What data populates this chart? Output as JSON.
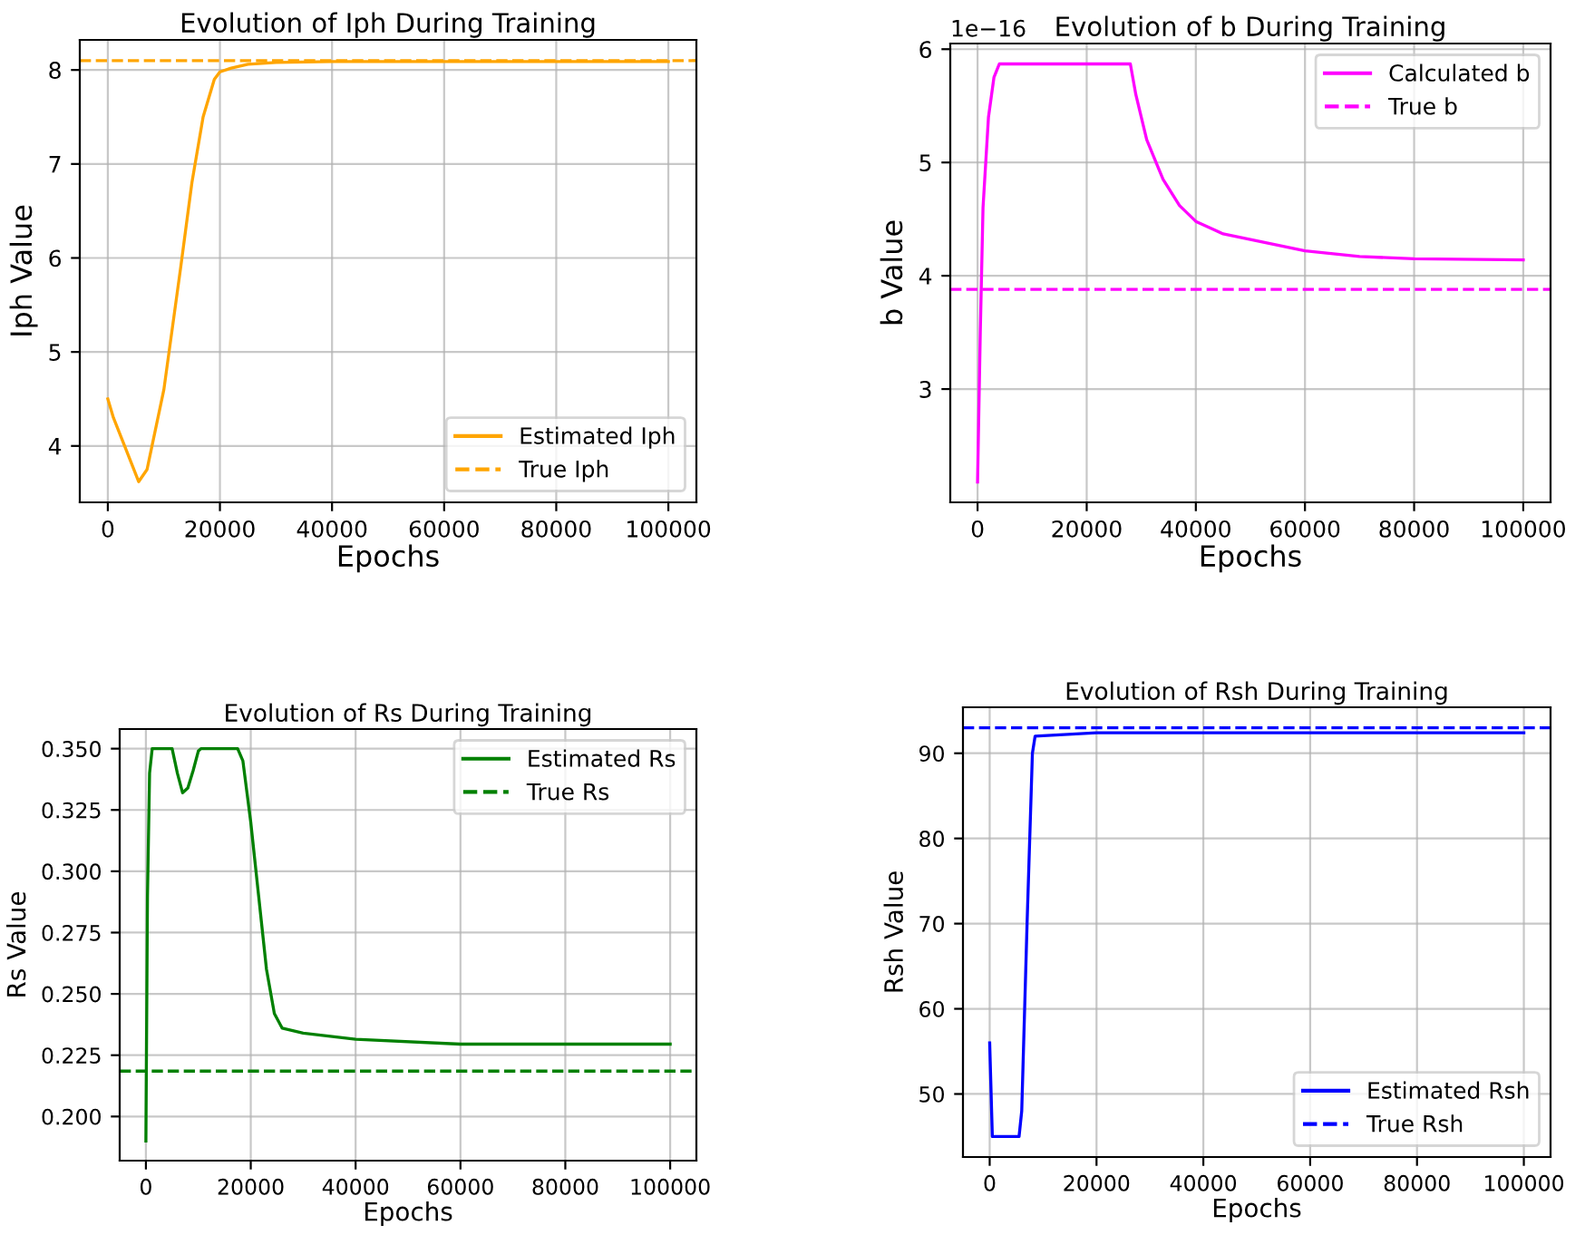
{
  "chart_data": [
    {
      "type": "line",
      "title": "Evolution of Iph During Training",
      "xlabel": "Epochs",
      "ylabel": "Iph Value",
      "grid": true,
      "legend": "lower right",
      "xlim": [
        -5000,
        105000
      ],
      "xticks": [
        0,
        20000,
        40000,
        60000,
        80000,
        100000
      ],
      "ylim": [
        3.4,
        8.32
      ],
      "yticks": [
        4,
        5,
        6,
        7,
        8
      ],
      "series": [
        {
          "name": "Estimated Iph",
          "color": "#ffa500",
          "x": [
            0,
            1000,
            3000,
            5500,
            7000,
            10000,
            13000,
            15000,
            17000,
            19000,
            20000,
            22000,
            25000,
            30000,
            40000,
            100000
          ],
          "values": [
            4.5,
            4.3,
            4.0,
            3.62,
            3.75,
            4.6,
            5.9,
            6.8,
            7.5,
            7.9,
            7.98,
            8.02,
            8.06,
            8.08,
            8.09,
            8.09
          ]
        }
      ],
      "ref_lines": [
        {
          "axis": "y",
          "value": 8.1,
          "label": "True Iph",
          "color": "#ffa500",
          "line_style": "dashed"
        }
      ]
    },
    {
      "type": "line",
      "title": "Evolution of b During Training",
      "xlabel": "Epochs",
      "ylabel": "b Value",
      "grid": true,
      "legend": "upper right",
      "annotations": [
        "1e−16"
      ],
      "xlim": [
        -5000,
        105000
      ],
      "xticks": [
        0,
        20000,
        40000,
        60000,
        80000,
        100000
      ],
      "ylim": [
        2.0,
        6.05
      ],
      "yticks": [
        3,
        4,
        5,
        6
      ],
      "series": [
        {
          "name": "Calculated b",
          "color": "#ff00ff",
          "x": [
            0,
            500,
            1000,
            2000,
            3000,
            4000,
            28000,
            29000,
            31000,
            34000,
            37000,
            40000,
            45000,
            50000,
            60000,
            70000,
            80000,
            100000
          ],
          "values": [
            2.18,
            3.5,
            4.6,
            5.4,
            5.75,
            5.87,
            5.87,
            5.6,
            5.2,
            4.85,
            4.62,
            4.48,
            4.37,
            4.32,
            4.22,
            4.17,
            4.15,
            4.14
          ]
        }
      ],
      "ref_lines": [
        {
          "axis": "y",
          "value": 3.88,
          "label": "True b",
          "color": "#ff00ff",
          "line_style": "dashed"
        }
      ]
    },
    {
      "type": "line",
      "title": "Evolution of Rs During Training",
      "xlabel": "Epochs",
      "ylabel": "Rs Value",
      "grid": true,
      "legend": "upper right",
      "xlim": [
        -5000,
        105000
      ],
      "xticks": [
        0,
        20000,
        40000,
        60000,
        80000,
        100000
      ],
      "ylim": [
        0.182,
        0.358
      ],
      "yticks": [
        {
          "value": 0.2,
          "label": "0.200"
        },
        {
          "value": 0.225,
          "label": "0.225"
        },
        {
          "value": 0.25,
          "label": "0.250"
        },
        {
          "value": 0.275,
          "label": "0.275"
        },
        {
          "value": 0.3,
          "label": "0.300"
        },
        {
          "value": 0.325,
          "label": "0.325"
        },
        {
          "value": 0.35,
          "label": "0.350"
        }
      ],
      "series": [
        {
          "name": "Estimated Rs",
          "color": "#008000",
          "x": [
            0,
            300,
            700,
            1200,
            5000,
            6000,
            7000,
            8000,
            9000,
            10000,
            10500,
            17500,
            18500,
            20000,
            21500,
            23000,
            24500,
            26000,
            30000,
            40000,
            60000,
            100000
          ],
          "values": [
            0.19,
            0.29,
            0.34,
            0.35,
            0.35,
            0.34,
            0.332,
            0.334,
            0.341,
            0.349,
            0.35,
            0.35,
            0.345,
            0.32,
            0.29,
            0.26,
            0.242,
            0.236,
            0.234,
            0.2315,
            0.2295,
            0.2295
          ]
        }
      ],
      "ref_lines": [
        {
          "axis": "y",
          "value": 0.2185,
          "label": "True Rs",
          "color": "#008000",
          "line_style": "dashed"
        }
      ]
    },
    {
      "type": "line",
      "title": "Evolution of Rsh During Training",
      "xlabel": "Epochs",
      "ylabel": "Rsh Value",
      "grid": true,
      "legend": "lower right",
      "xlim": [
        -5000,
        105000
      ],
      "xticks": [
        0,
        20000,
        40000,
        60000,
        80000,
        100000
      ],
      "ylim": [
        42.6,
        95.4
      ],
      "yticks": [
        50,
        60,
        70,
        80,
        90
      ],
      "series": [
        {
          "name": "Estimated Rsh",
          "color": "#0000ff",
          "x": [
            0,
            500,
            5500,
            6000,
            7000,
            8000,
            8500,
            20000,
            100000
          ],
          "values": [
            56,
            45,
            45,
            48,
            70,
            90,
            92,
            92.4,
            92.4
          ]
        }
      ],
      "ref_lines": [
        {
          "axis": "y",
          "value": 93,
          "label": "True Rsh",
          "color": "#0000ff",
          "line_style": "dashed"
        }
      ]
    }
  ]
}
